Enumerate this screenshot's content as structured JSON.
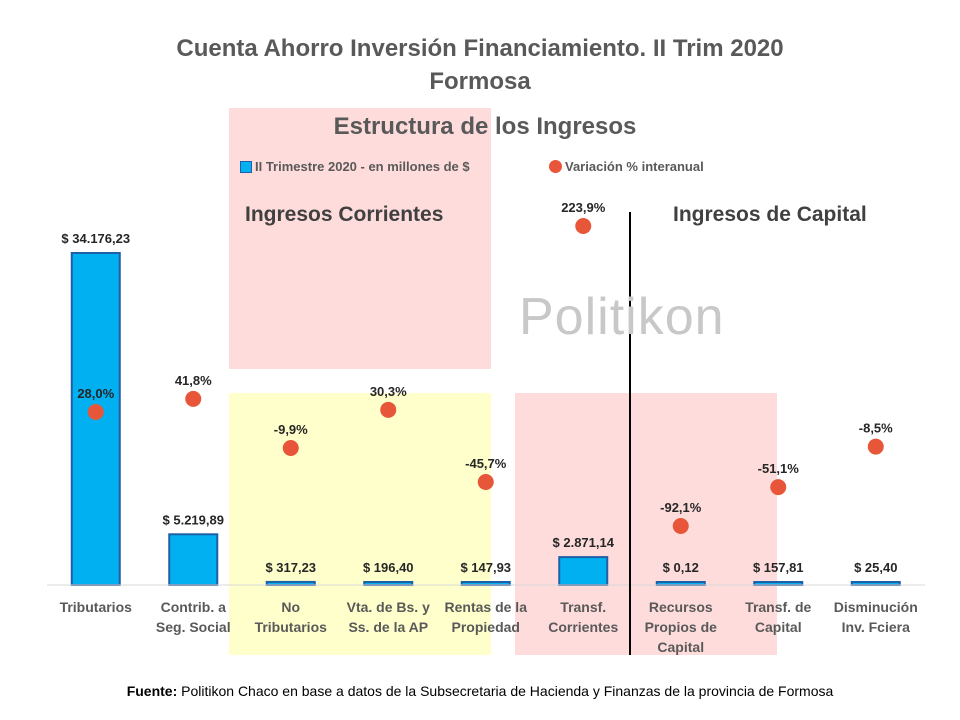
{
  "header": {
    "title_line1": "Cuenta Ahorro Inversión Financiamiento. II Trim 2020",
    "title_line2": "Formosa"
  },
  "watermark": "Politikon",
  "regions": {
    "corrientes": "Ingresos Corrientes",
    "capital": "Ingresos de Capital"
  },
  "footer": {
    "source_label": "Fuente:",
    "source_text": "Politikon Chaco en base a datos de la Subsecretaria de Hacienda y Finanzas de la provincia de Formosa"
  },
  "colors": {
    "bar": "#00b0f0",
    "bar_border": "#1f5fa6",
    "dot": "#e8563a",
    "shade_red": "#ffdcdc",
    "shade_yellow": "#ffffcc"
  },
  "chart_data": {
    "type": "bar",
    "title": "Estructura de los Ingresos",
    "legend": [
      "II Trimestre 2020 - en millones de $",
      "Variación % interanual"
    ],
    "categories": [
      [
        "Tributarios"
      ],
      [
        "Contrib. a",
        "Seg. Social"
      ],
      [
        "No",
        "Tributarios"
      ],
      [
        "Vta. de Bs. y",
        "Ss. de la AP"
      ],
      [
        "Rentas de la",
        "Propiedad"
      ],
      [
        "Transf.",
        "Corrientes"
      ],
      [
        "Recursos",
        "Propios de",
        "Capital"
      ],
      [
        "Transf. de",
        "Capital"
      ],
      [
        "Disminución",
        "Inv. Fciera"
      ]
    ],
    "series": [
      {
        "name": "II Trimestre 2020 - en millones de $",
        "type": "bar",
        "values": [
          34176.23,
          5219.89,
          317.23,
          196.4,
          147.93,
          2871.14,
          0.12,
          157.81,
          25.4
        ],
        "labels": [
          "$ 34.176,23",
          "$ 5.219,89",
          "$ 317,23",
          "$ 196,40",
          "$ 147,93",
          "$ 2.871,14",
          "$ 0,12",
          "$ 157,81",
          "$ 25,40"
        ]
      },
      {
        "name": "Variación % interanual",
        "type": "scatter",
        "values": [
          28.0,
          41.8,
          -9.9,
          30.3,
          -45.7,
          223.9,
          -92.1,
          -51.1,
          -8.5
        ],
        "labels": [
          "28,0%",
          "41,8%",
          "-9,9%",
          "30,3%",
          "-45,7%",
          "223,9%",
          "-92,1%",
          "-51,1%",
          "-8,5%"
        ]
      }
    ],
    "bar_ylim": [
      0,
      38000
    ],
    "pct_ylim": [
      -250,
      250
    ],
    "grid": false
  }
}
